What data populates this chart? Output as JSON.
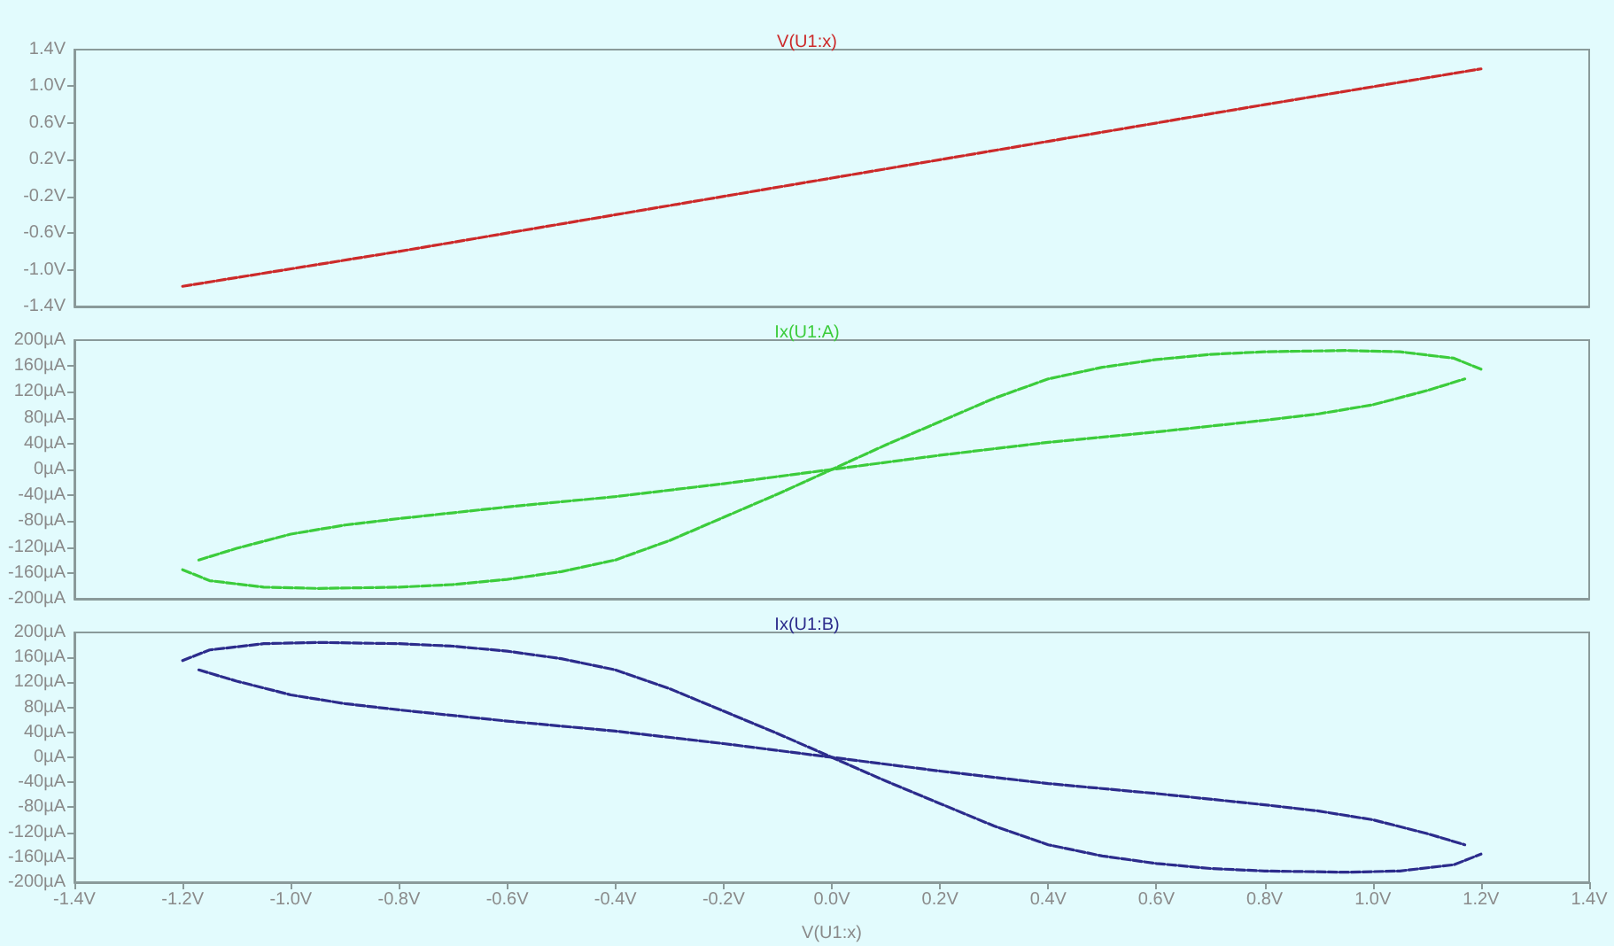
{
  "chart_data": [
    {
      "type": "line",
      "title": "V(U1:x)",
      "xlim": [
        -1.4,
        1.4
      ],
      "ylim": [
        -1.4,
        1.4
      ],
      "tick_labels": "y",
      "grid": false,
      "marker": "none",
      "line_style": "dashed",
      "yticks": [
        {
          "value": 1.4,
          "label": "1.4V"
        },
        {
          "value": 1.0,
          "label": "1.0V"
        },
        {
          "value": 0.6,
          "label": "0.6V"
        },
        {
          "value": 0.2,
          "label": "0.2V"
        },
        {
          "value": -0.2,
          "label": "-0.2V"
        },
        {
          "value": -0.6,
          "label": "-0.6V"
        },
        {
          "value": -1.0,
          "label": "-1.0V"
        },
        {
          "value": -1.4,
          "label": "-1.4V"
        }
      ],
      "series": [
        {
          "color": "#cc2a2a",
          "x": [
            -1.2,
            -0.8,
            -0.4,
            0,
            0.4,
            0.8,
            1.2
          ],
          "values": [
            -1.18,
            -0.8,
            -0.4,
            0,
            0.4,
            0.8,
            1.19
          ]
        }
      ]
    },
    {
      "type": "line",
      "title": "Ix(U1:A)",
      "xlim": [
        -1.4,
        1.4
      ],
      "ylim": [
        -200,
        200
      ],
      "tick_labels": "y",
      "grid": false,
      "marker": "none",
      "line_style": "dashed",
      "yticks": [
        {
          "value": 200,
          "label": "200µA"
        },
        {
          "value": 160,
          "label": "160µA"
        },
        {
          "value": 120,
          "label": "120µA"
        },
        {
          "value": 80,
          "label": "80µA"
        },
        {
          "value": 40,
          "label": "40µA"
        },
        {
          "value": 0,
          "label": "0µA"
        },
        {
          "value": -40,
          "label": "-40µA"
        },
        {
          "value": -80,
          "label": "-80µA"
        },
        {
          "value": -120,
          "label": "-120µA"
        },
        {
          "value": -160,
          "label": "-160µA"
        },
        {
          "value": -200,
          "label": "-200µA"
        }
      ],
      "series": [
        {
          "color": "#3ccc3c",
          "x": [
            -1.2,
            -1.15,
            -1.05,
            -0.95,
            -0.8,
            -0.7,
            -0.6,
            -0.5,
            -0.4,
            -0.3,
            -0.2,
            -0.1,
            0,
            0.1,
            0.2,
            0.3,
            0.4,
            0.5,
            0.6,
            0.7,
            0.8,
            0.95,
            1.05,
            1.15,
            1.2
          ],
          "values": [
            -155,
            -172,
            -182,
            -184,
            -182,
            -178,
            -170,
            -158,
            -140,
            -110,
            -74,
            -38,
            0,
            38,
            74,
            110,
            140,
            158,
            170,
            178,
            182,
            184,
            182,
            172,
            155
          ]
        },
        {
          "color": "#3ccc3c",
          "x": [
            -1.17,
            -1.1,
            -1.0,
            -0.9,
            -0.8,
            -0.6,
            -0.4,
            -0.2,
            0,
            0.2,
            0.4,
            0.6,
            0.8,
            0.9,
            1.0,
            1.1,
            1.17
          ],
          "values": [
            -140,
            -122,
            -100,
            -86,
            -76,
            -58,
            -42,
            -22,
            0,
            22,
            42,
            58,
            76,
            86,
            100,
            122,
            140
          ]
        }
      ]
    },
    {
      "type": "line",
      "title": "Ix(U1:B)",
      "xlabel": "V(U1:x)",
      "xlim": [
        -1.4,
        1.4
      ],
      "ylim": [
        -200,
        200
      ],
      "grid": false,
      "marker": "none",
      "line_style": "dashed",
      "xticks": [
        {
          "value": -1.4,
          "label": "-1.4V"
        },
        {
          "value": -1.2,
          "label": "-1.2V"
        },
        {
          "value": -1.0,
          "label": "-1.0V"
        },
        {
          "value": -0.8,
          "label": "-0.8V"
        },
        {
          "value": -0.6,
          "label": "-0.6V"
        },
        {
          "value": -0.4,
          "label": "-0.4V"
        },
        {
          "value": -0.2,
          "label": "-0.2V"
        },
        {
          "value": 0,
          "label": "0.0V"
        },
        {
          "value": 0.2,
          "label": "0.2V"
        },
        {
          "value": 0.4,
          "label": "0.4V"
        },
        {
          "value": 0.6,
          "label": "0.6V"
        },
        {
          "value": 0.8,
          "label": "0.8V"
        },
        {
          "value": 1.0,
          "label": "1.0V"
        },
        {
          "value": 1.2,
          "label": "1.2V"
        },
        {
          "value": 1.4,
          "label": "1.4V"
        }
      ],
      "yticks": [
        {
          "value": 200,
          "label": "200µA"
        },
        {
          "value": 160,
          "label": "160µA"
        },
        {
          "value": 120,
          "label": "120µA"
        },
        {
          "value": 80,
          "label": "80µA"
        },
        {
          "value": 40,
          "label": "40µA"
        },
        {
          "value": 0,
          "label": "0µA"
        },
        {
          "value": -40,
          "label": "-40µA"
        },
        {
          "value": -80,
          "label": "-80µA"
        },
        {
          "value": -120,
          "label": "-120µA"
        },
        {
          "value": -160,
          "label": "-160µA"
        },
        {
          "value": -200,
          "label": "-200µA"
        }
      ],
      "series": [
        {
          "color": "#2c2c8c",
          "x": [
            -1.2,
            -1.15,
            -1.05,
            -0.95,
            -0.8,
            -0.7,
            -0.6,
            -0.5,
            -0.4,
            -0.3,
            -0.2,
            -0.1,
            0,
            0.1,
            0.2,
            0.3,
            0.4,
            0.5,
            0.6,
            0.7,
            0.8,
            0.95,
            1.05,
            1.15,
            1.2
          ],
          "values": [
            155,
            172,
            182,
            184,
            182,
            178,
            170,
            158,
            140,
            110,
            74,
            38,
            0,
            -38,
            -74,
            -110,
            -140,
            -158,
            -170,
            -178,
            -182,
            -184,
            -182,
            -172,
            -155
          ]
        },
        {
          "color": "#2c2c8c",
          "x": [
            -1.17,
            -1.1,
            -1.0,
            -0.9,
            -0.8,
            -0.6,
            -0.4,
            -0.2,
            0,
            0.2,
            0.4,
            0.6,
            0.8,
            0.9,
            1.0,
            1.1,
            1.17
          ],
          "values": [
            140,
            122,
            100,
            86,
            76,
            58,
            42,
            22,
            0,
            -22,
            -42,
            -58,
            -76,
            -86,
            -100,
            -122,
            -140
          ]
        }
      ]
    }
  ]
}
